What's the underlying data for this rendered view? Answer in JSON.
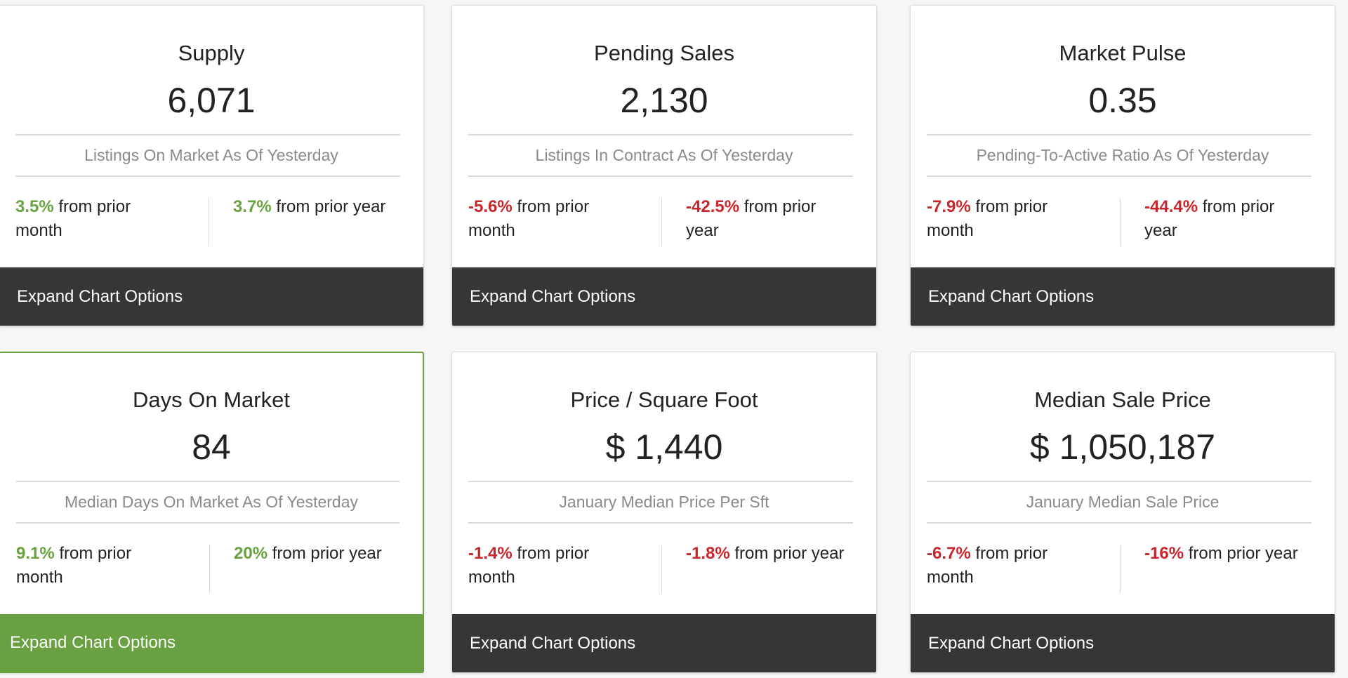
{
  "cards": [
    {
      "title": "Supply",
      "value": "6,071",
      "subtitle": "Listings On Market As Of Yesterday",
      "month_change": {
        "pct": "3.5%",
        "direction": "up",
        "text": "from prior month"
      },
      "year_change": {
        "pct": "3.7%",
        "direction": "up",
        "text": "from prior year"
      },
      "expand_label": "Expand Chart Options",
      "selected": false
    },
    {
      "title": "Pending Sales",
      "value": "2,130",
      "subtitle": "Listings In Contract As Of Yesterday",
      "month_change": {
        "pct": "-5.6%",
        "direction": "down",
        "text": "from prior month"
      },
      "year_change": {
        "pct": "-42.5%",
        "direction": "down",
        "text": "from prior year"
      },
      "expand_label": "Expand Chart Options",
      "selected": false
    },
    {
      "title": "Market Pulse",
      "value": "0.35",
      "subtitle": "Pending-To-Active Ratio As Of Yesterday",
      "month_change": {
        "pct": "-7.9%",
        "direction": "down",
        "text": "from prior month"
      },
      "year_change": {
        "pct": "-44.4%",
        "direction": "down",
        "text": "from prior year"
      },
      "expand_label": "Expand Chart Options",
      "selected": false
    },
    {
      "title": "Days On Market",
      "value": "84",
      "subtitle": "Median Days On Market As Of Yesterday",
      "month_change": {
        "pct": "9.1%",
        "direction": "up",
        "text": "from prior month"
      },
      "year_change": {
        "pct": "20%",
        "direction": "up",
        "text": "from prior year"
      },
      "expand_label": "Expand Chart Options",
      "selected": true
    },
    {
      "title": "Price / Square Foot",
      "value": "$ 1,440",
      "subtitle": "January Median Price Per Sft",
      "month_change": {
        "pct": "-1.4%",
        "direction": "down",
        "text": "from prior month"
      },
      "year_change": {
        "pct": "-1.8%",
        "direction": "down",
        "text": "from prior year"
      },
      "expand_label": "Expand Chart Options",
      "selected": false
    },
    {
      "title": "Median Sale Price",
      "value": "$ 1,050,187",
      "subtitle": "January Median Sale Price",
      "month_change": {
        "pct": "-6.7%",
        "direction": "down",
        "text": "from prior month"
      },
      "year_change": {
        "pct": "-16%",
        "direction": "down",
        "text": "from prior year"
      },
      "expand_label": "Expand Chart Options",
      "selected": false
    }
  ],
  "colors": {
    "up": "#69a23f",
    "down": "#c8262b",
    "bar_default": "#363636",
    "bar_selected": "#68a042"
  }
}
